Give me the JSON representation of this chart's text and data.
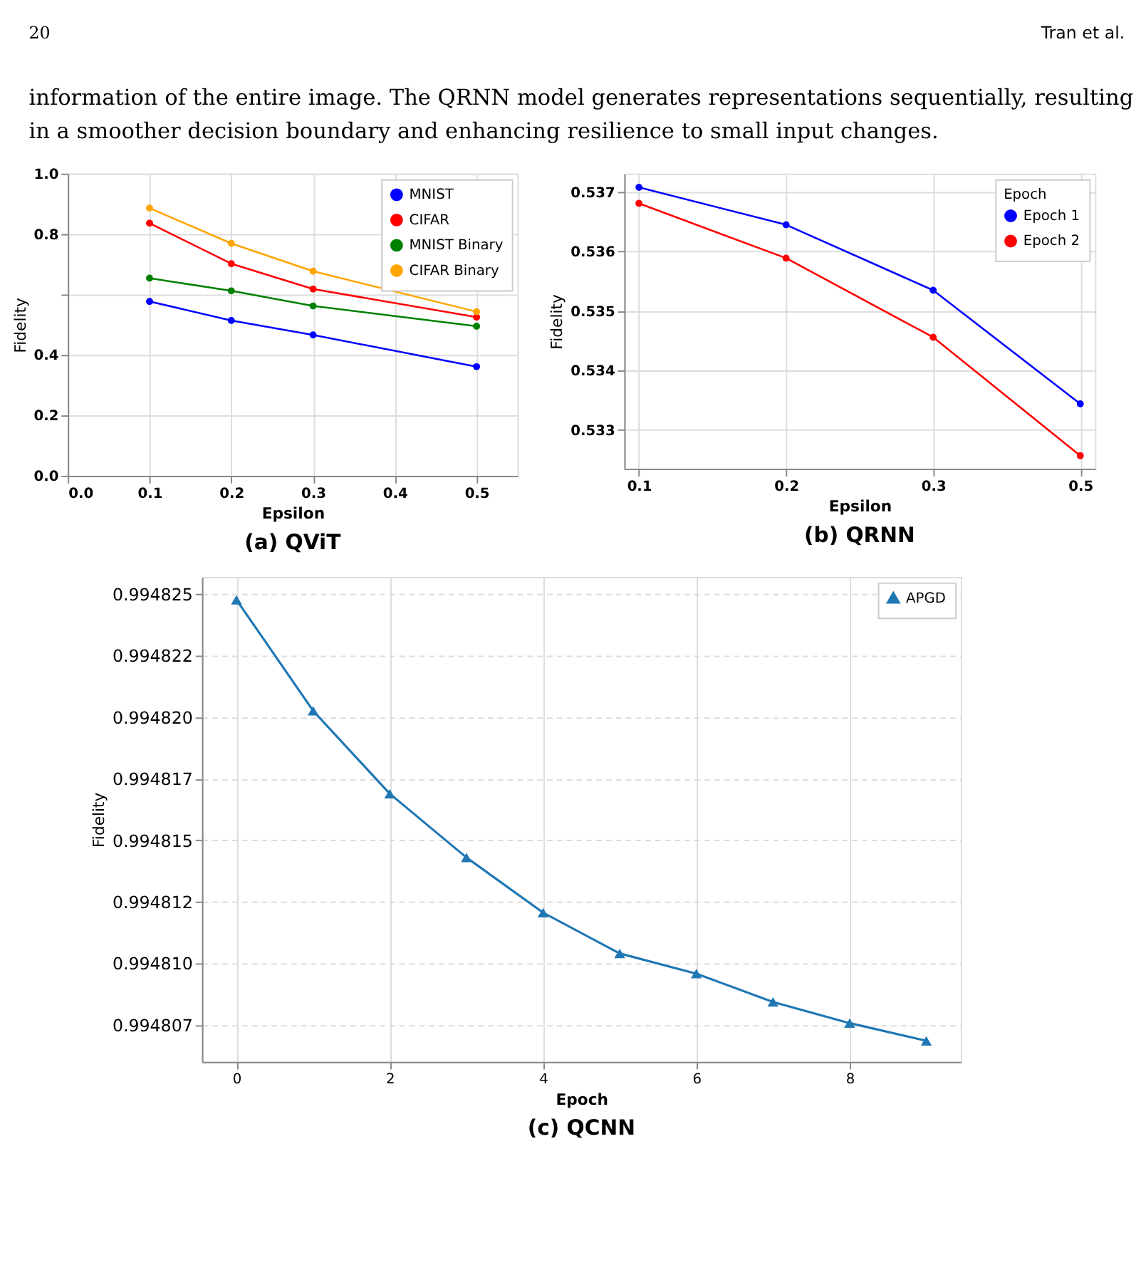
{
  "chart_data": [
    {
      "type": "other",
      "annotations": [
        "20",
        "Tran et al.",
        "information of the entire image. The QRNN model generates representations sequentially, resulting",
        "in a smoother decision boundary and enhancing resilience to small input changes."
      ]
    },
    {
      "type": "line",
      "title": "(a) QViT",
      "xlabel": "Epsilon",
      "ylabel": "Fidelity",
      "x": [
        0.1,
        0.2,
        0.3,
        0.5
      ],
      "xlim": [
        0.0,
        0.55
      ],
      "xticks": [
        {
          "value": 0,
          "label": "0.0"
        },
        0.1,
        0.2,
        0.3,
        0.4,
        0.5
      ],
      "ylim": [
        0.0,
        1.0
      ],
      "yticks": [
        {
          "value": 0,
          "label": "0.0"
        },
        0.2,
        0.4,
        {
          "value": 0.6,
          "label": null
        },
        0.8,
        {
          "value": 1,
          "label": "1.0"
        }
      ],
      "grid": true,
      "legend": "top right",
      "marker": "circle",
      "line_style": "solid",
      "series": [
        {
          "name": "MNIST",
          "color": "#0000ff",
          "values": [
            0.577,
            0.514,
            0.466,
            0.361
          ]
        },
        {
          "name": "CIFAR",
          "color": "#ff0000",
          "values": [
            0.836,
            0.702,
            0.618,
            0.525
          ]
        },
        {
          "name": "MNIST Binary",
          "color": "#008000",
          "values": [
            0.654,
            0.612,
            0.562,
            0.495
          ]
        },
        {
          "name": "CIFAR Binary",
          "color": "#ffa500",
          "values": [
            0.886,
            0.769,
            0.677,
            0.543
          ]
        }
      ]
    },
    {
      "type": "line",
      "title": "(b) QRNN",
      "xlabel": "Epsilon",
      "ylabel": "Fidelity",
      "legend_title": "Epoch",
      "categories": [
        "0.1",
        "0.2",
        "0.3",
        "0.5"
      ],
      "ylim": [
        0.53235,
        0.53731
      ],
      "yticks": [
        0.533,
        0.534,
        0.535,
        0.536,
        0.537
      ],
      "grid": true,
      "legend": "top right",
      "marker": "circle",
      "line_style": "solid",
      "series": [
        {
          "name": "Epoch 1",
          "color": "#0000ff",
          "values": [
            0.53708,
            0.53645,
            0.53535,
            0.53344
          ]
        },
        {
          "name": "Epoch 2",
          "color": "#ff0000",
          "values": [
            0.53681,
            0.53589,
            0.53456,
            0.53257
          ]
        }
      ]
    },
    {
      "type": "line",
      "title": "(c) QCNN",
      "xlabel": "Epoch",
      "ylabel": "Fidelity",
      "x": [
        0,
        1,
        2,
        3,
        4,
        5,
        6,
        7,
        8,
        9
      ],
      "xlim": [
        -0.45,
        9.45
      ],
      "xticks": [
        0,
        2,
        4,
        6,
        8
      ],
      "ylim": [
        0.994806,
        0.9948257
      ],
      "yticks": [
        {
          "value": 0.9948075,
          "label": "0.994807"
        },
        {
          "value": 0.99481,
          "label": "0.994810"
        },
        {
          "value": 0.9948125,
          "label": "0.994812"
        },
        {
          "value": 0.994815,
          "label": "0.994815"
        },
        {
          "value": 0.9948175,
          "label": "0.994817"
        },
        {
          "value": 0.99482,
          "label": "0.994820"
        },
        {
          "value": 0.9948225,
          "label": "0.994822"
        },
        {
          "value": 0.994825,
          "label": "0.994825"
        }
      ],
      "grid": true,
      "legend": "top right",
      "marker": "triangle",
      "line_style": "solid",
      "series": [
        {
          "name": "APGD",
          "color": "#1f77b4",
          "values": [
            0.99482477,
            0.99482026,
            0.99481689,
            0.9948143,
            0.99481206,
            0.9948104,
            0.99480958,
            0.99480843,
            0.99480757,
            0.99480685
          ]
        }
      ]
    }
  ]
}
